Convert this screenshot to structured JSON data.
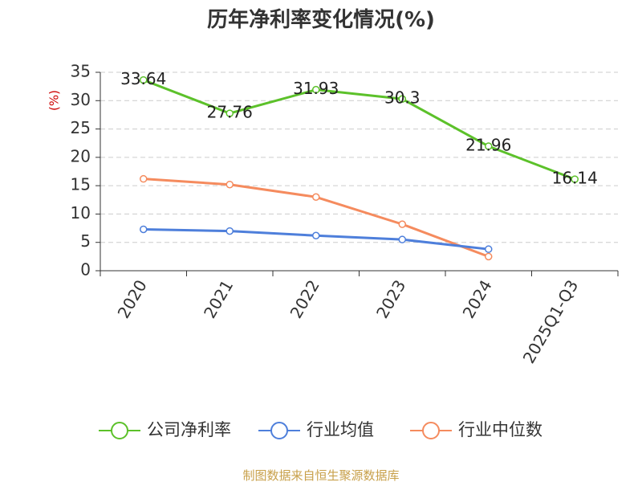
{
  "chart_data": {
    "type": "line",
    "title": "历年净利率变化情况(%)",
    "ylabel": "(%)",
    "categories": [
      "2020",
      "2021",
      "2022",
      "2023",
      "2024",
      "2025Q1-Q3"
    ],
    "ylim": [
      0,
      35
    ],
    "yticks": [
      0,
      5,
      10,
      15,
      20,
      25,
      30,
      35
    ],
    "grid": true,
    "legend_position": "bottom",
    "series": [
      {
        "name": "公司净利率",
        "color": "#5cc12a",
        "values": [
          33.64,
          27.76,
          31.93,
          30.3,
          21.96,
          16.14
        ],
        "labels": [
          "33.64",
          "27.76",
          "31.93",
          "30.3",
          "21.96",
          "16.14"
        ]
      },
      {
        "name": "行业均值",
        "color": "#4e7fdb",
        "values": [
          7.3,
          7.0,
          6.2,
          5.5,
          3.8,
          null
        ]
      },
      {
        "name": "行业中位数",
        "color": "#f58b5e",
        "values": [
          16.2,
          15.2,
          13.0,
          8.2,
          2.5,
          null
        ]
      }
    ],
    "source": "制图数据来自恒生聚源数据库"
  },
  "colors": {
    "title": "#333333",
    "ylabel": "#cc0000",
    "source": "#c8a04a",
    "grid": "#cccccc",
    "axis": "#333333"
  }
}
